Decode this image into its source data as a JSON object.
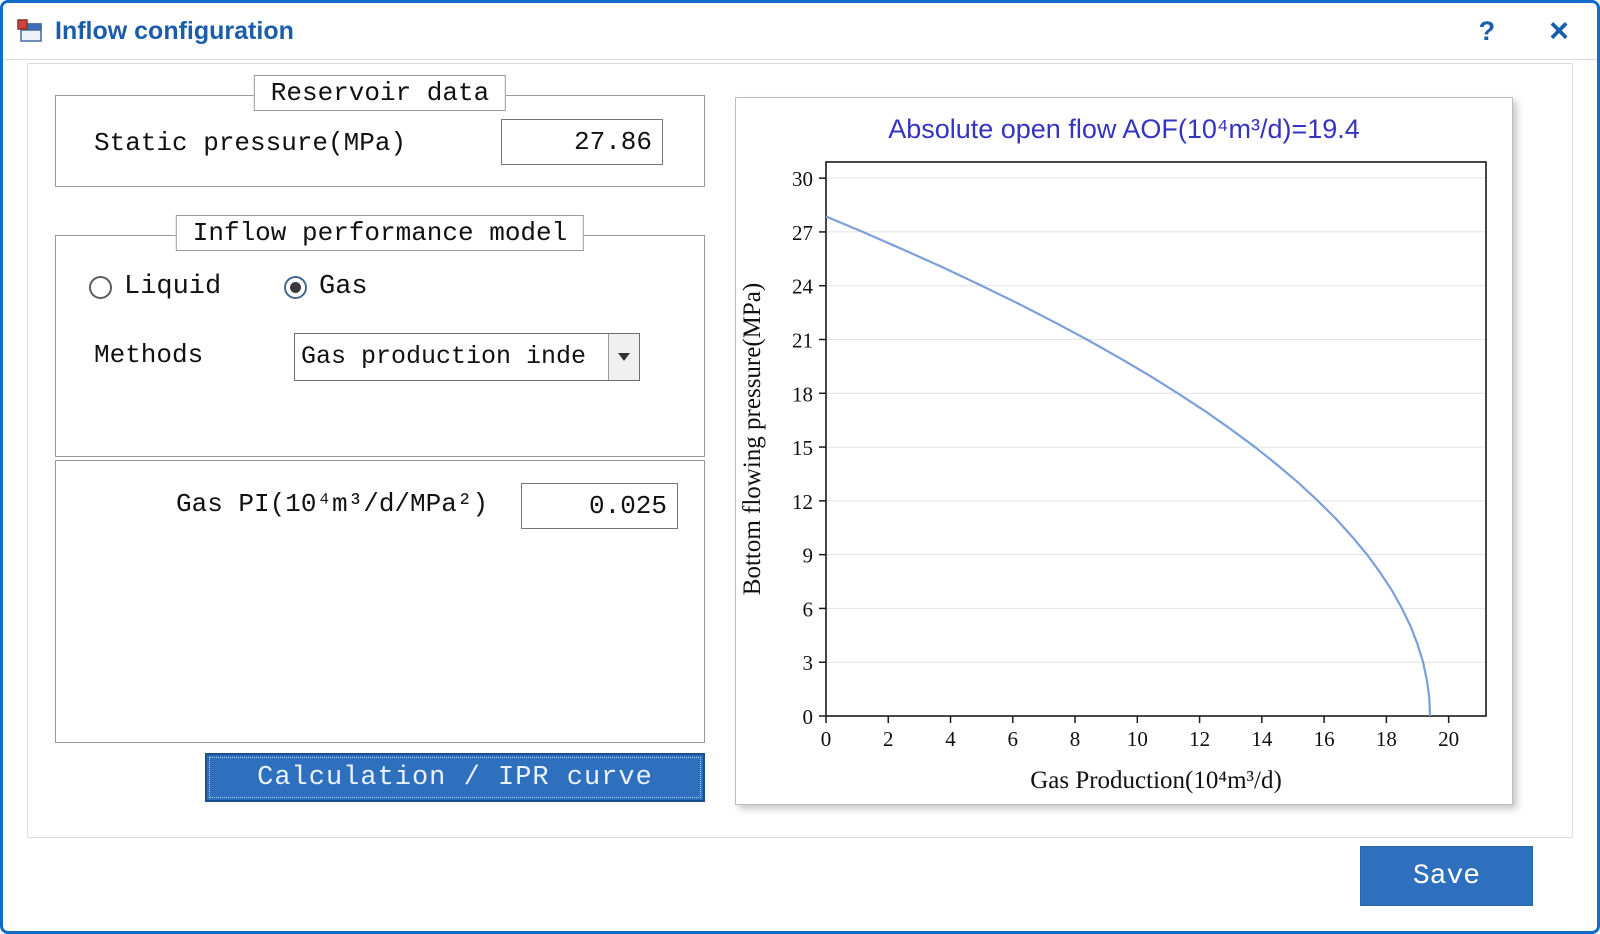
{
  "window": {
    "title": "Inflow configuration",
    "help_label": "?",
    "close_label": "×"
  },
  "reservoir": {
    "group_title": "Reservoir data",
    "static_pressure_label": "Static pressure(MPa)",
    "static_pressure_value": "27.86"
  },
  "inflow_model": {
    "group_title": "Inflow performance model",
    "liquid_label": "Liquid",
    "gas_label": "Gas",
    "selected": "Gas",
    "methods_label": "Methods",
    "methods_value": "Gas production inde"
  },
  "gas_pi": {
    "label": "Gas PI(10⁴m³/d/MPa²)",
    "value": "0.025"
  },
  "actions": {
    "calculation_label": "Calculation / IPR curve",
    "save_label": "Save"
  },
  "colors": {
    "window_border_blue": "#0f6dc6",
    "title_text_blue": "#1a5dab",
    "button_blue": "#2e70bd",
    "chart_title_blue": "#3434c0",
    "curve_blue": "#7b9fd8"
  },
  "chart_data": {
    "type": "line",
    "title": "Absolute open flow AOF(10⁴m³/d)=19.4",
    "xlabel": "Gas Production(10⁴m³/d)",
    "ylabel": "Bottom flowing pressure(MPa)",
    "xlim": [
      0,
      21.2
    ],
    "ylim": [
      0,
      30.9
    ],
    "xticks": [
      0,
      2,
      4,
      6,
      8,
      10,
      12,
      14,
      16,
      18,
      20
    ],
    "yticks": [
      0,
      3,
      6,
      9,
      12,
      15,
      18,
      21,
      24,
      27,
      30
    ],
    "grid": "horizontal",
    "legend": "none",
    "line_color": "#7b9fd8",
    "aof": 19.4,
    "static_pressure": 27.86,
    "series": [
      {
        "name": "IPR curve",
        "points": [
          [
            0,
            27.86
          ],
          [
            1.18,
            27
          ],
          [
            2.5,
            26
          ],
          [
            3.78,
            25
          ],
          [
            5.0,
            24
          ],
          [
            6.18,
            23
          ],
          [
            7.3,
            22
          ],
          [
            8.38,
            21
          ],
          [
            9.4,
            20
          ],
          [
            10.38,
            19
          ],
          [
            11.3,
            18
          ],
          [
            12.18,
            17
          ],
          [
            13.0,
            16
          ],
          [
            13.78,
            15
          ],
          [
            14.5,
            14
          ],
          [
            15.18,
            13
          ],
          [
            15.8,
            12
          ],
          [
            16.38,
            11
          ],
          [
            16.9,
            10
          ],
          [
            17.38,
            9
          ],
          [
            17.8,
            8
          ],
          [
            18.18,
            7
          ],
          [
            18.5,
            6
          ],
          [
            18.78,
            5
          ],
          [
            19.0,
            4
          ],
          [
            19.18,
            3
          ],
          [
            19.3,
            2
          ],
          [
            19.38,
            1
          ],
          [
            19.4,
            0
          ]
        ]
      }
    ]
  }
}
